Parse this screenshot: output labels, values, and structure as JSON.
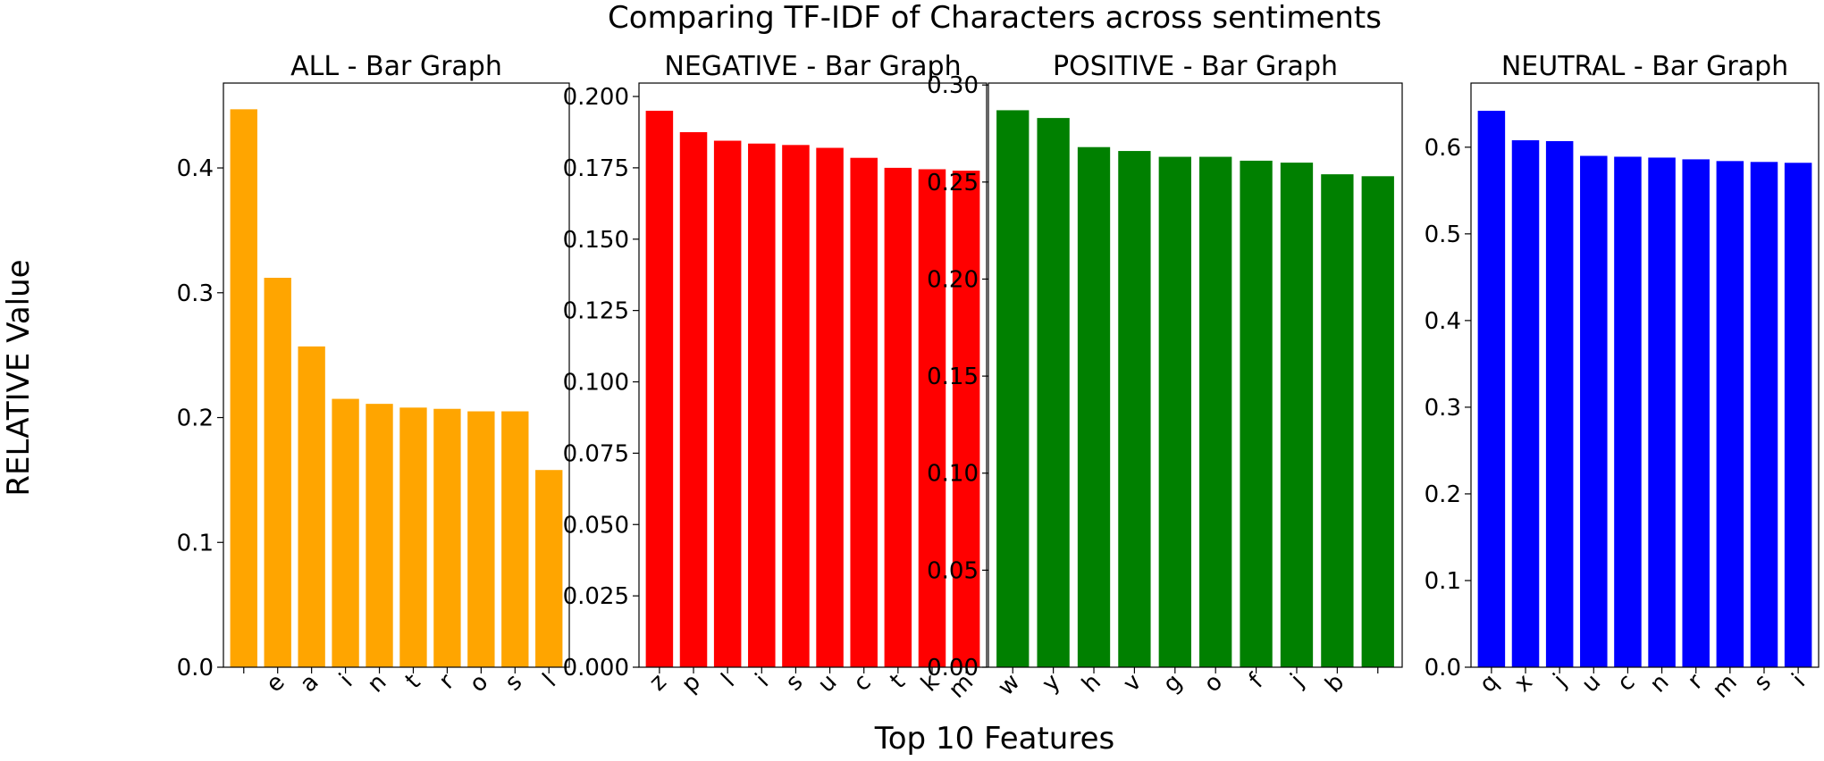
{
  "figure": {
    "suptitle": "Comparing TF-IDF of Characters across sentiments",
    "supxlabel": "Top 10 Features",
    "supylabel": "RELATIVE Value"
  },
  "chart_data": [
    {
      "type": "bar",
      "title": "ALL - Bar Graph",
      "color": "#ffa500",
      "categories": [
        "",
        "e",
        "a",
        "i",
        "n",
        "t",
        "r",
        "o",
        "s",
        "l"
      ],
      "values": [
        0.447,
        0.312,
        0.257,
        0.215,
        0.211,
        0.208,
        0.207,
        0.205,
        0.205,
        0.158
      ],
      "ylim": [
        0,
        0.468
      ],
      "yticks": [
        0.0,
        0.1,
        0.2,
        0.3,
        0.4
      ],
      "ytick_labels": [
        "0.0",
        "0.1",
        "0.2",
        "0.3",
        "0.4"
      ]
    },
    {
      "type": "bar",
      "title": "NEGATIVE - Bar Graph",
      "color": "#ff0000",
      "categories": [
        "z",
        "p",
        "l",
        "i",
        "s",
        "u",
        "c",
        "t",
        "k",
        "m"
      ],
      "values": [
        0.195,
        0.1875,
        0.1845,
        0.1835,
        0.183,
        0.182,
        0.1785,
        0.175,
        0.1745,
        0.174
      ],
      "ylim": [
        0,
        0.2047
      ],
      "yticks": [
        0.0,
        0.025,
        0.05,
        0.075,
        0.1,
        0.125,
        0.15,
        0.175,
        0.2
      ],
      "ytick_labels": [
        "0.000",
        "0.025",
        "0.050",
        "0.075",
        "0.100",
        "0.125",
        "0.150",
        "0.175",
        "0.200"
      ]
    },
    {
      "type": "bar",
      "title": "POSITIVE - Bar Graph",
      "color": "#008000",
      "categories": [
        "w",
        "y",
        "h",
        "v",
        "g",
        "o",
        "f",
        "j",
        "b",
        ""
      ],
      "values": [
        0.287,
        0.283,
        0.268,
        0.266,
        0.263,
        0.263,
        0.261,
        0.26,
        0.254,
        0.253
      ],
      "ylim": [
        0,
        0.301
      ],
      "yticks": [
        0.0,
        0.05,
        0.1,
        0.15,
        0.2,
        0.25,
        0.3
      ],
      "ytick_labels": [
        "0.00",
        "0.05",
        "0.10",
        "0.15",
        "0.20",
        "0.25",
        "0.30"
      ]
    },
    {
      "type": "bar",
      "title": "NEUTRAL - Bar Graph",
      "color": "#0000ff",
      "categories": [
        "q",
        "x",
        "j",
        "u",
        "c",
        "n",
        "r",
        "m",
        "s",
        "i"
      ],
      "values": [
        0.642,
        0.608,
        0.607,
        0.59,
        0.589,
        0.588,
        0.586,
        0.584,
        0.583,
        0.582
      ],
      "ylim": [
        0,
        0.674
      ],
      "yticks": [
        0.0,
        0.1,
        0.2,
        0.3,
        0.4,
        0.5,
        0.6
      ],
      "ytick_labels": [
        "0.0",
        "0.1",
        "0.2",
        "0.3",
        "0.4",
        "0.5",
        "0.6"
      ]
    }
  ]
}
